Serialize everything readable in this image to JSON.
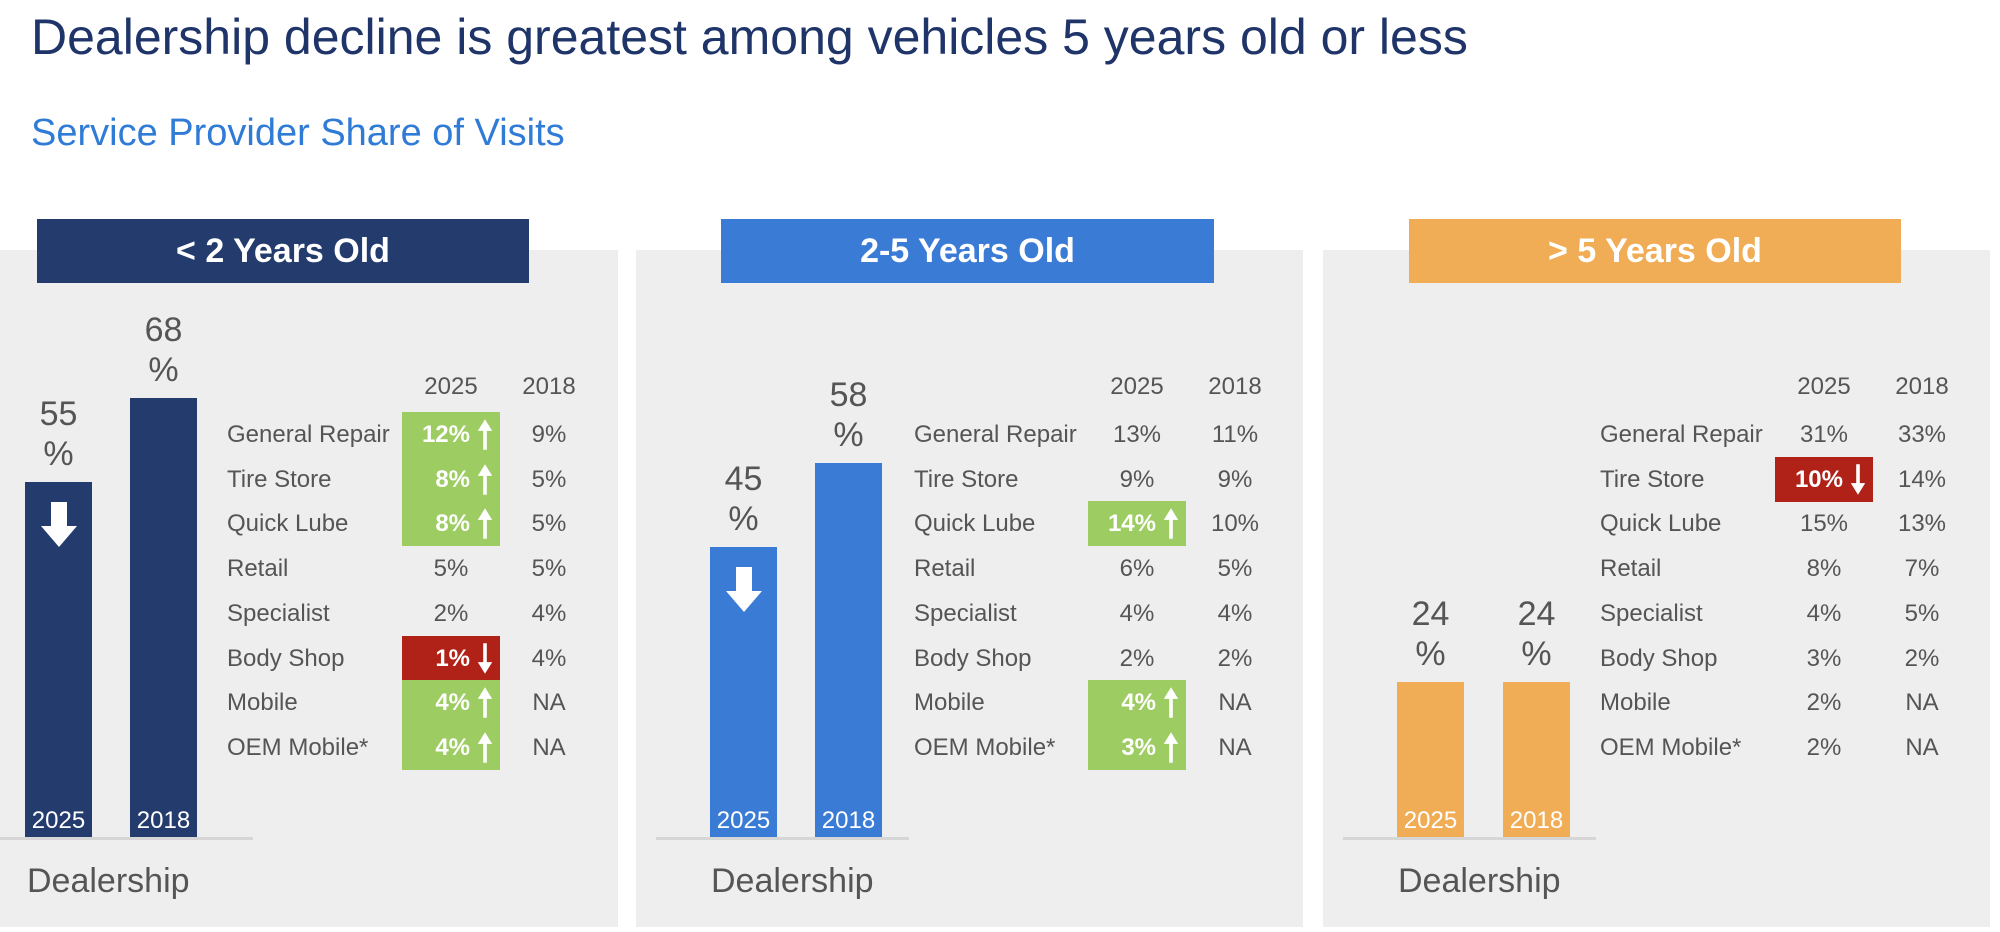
{
  "title": "Dealership decline is greatest among vehicles 5 years old or less",
  "subtitle": "Service Provider Share of Visits",
  "colors": {
    "title": "#1f3468",
    "subtitle": "#2f7bd6",
    "increase": "#9dcc63",
    "decrease": "#b02118",
    "panel_bg": "#eeeeee"
  },
  "chart_data": [
    {
      "type": "bar",
      "title": "< 2 Years Old",
      "color": "#243b6e",
      "categories": [
        "2025",
        "2018"
      ],
      "values": [
        55,
        68
      ],
      "value_labels": [
        "55\n%",
        "68\n%"
      ],
      "xlabel": "Dealership",
      "ylim": [
        0,
        100
      ],
      "annotation": {
        "bar": "2025",
        "icon": "down-arrow-icon"
      },
      "table": {
        "columns": [
          "2025",
          "2018"
        ],
        "rows": [
          {
            "label": "General Repair",
            "v2025": "12%",
            "v2018": "9%",
            "trend": "up"
          },
          {
            "label": "Tire Store",
            "v2025": "8%",
            "v2018": "5%",
            "trend": "up"
          },
          {
            "label": "Quick Lube",
            "v2025": "8%",
            "v2018": "5%",
            "trend": "up"
          },
          {
            "label": "Retail",
            "v2025": "5%",
            "v2018": "5%",
            "trend": ""
          },
          {
            "label": "Specialist",
            "v2025": "2%",
            "v2018": "4%",
            "trend": ""
          },
          {
            "label": "Body Shop",
            "v2025": "1%",
            "v2018": "4%",
            "trend": "down"
          },
          {
            "label": "Mobile",
            "v2025": "4%",
            "v2018": "NA",
            "trend": "up"
          },
          {
            "label": "OEM Mobile*",
            "v2025": "4%",
            "v2018": "NA",
            "trend": "up"
          }
        ]
      }
    },
    {
      "type": "bar",
      "title": "2-5 Years Old",
      "color": "#3a7bd5",
      "categories": [
        "2025",
        "2018"
      ],
      "values": [
        45,
        58
      ],
      "value_labels": [
        "45\n%",
        "58\n%"
      ],
      "xlabel": "Dealership",
      "ylim": [
        0,
        100
      ],
      "annotation": {
        "bar": "2025",
        "icon": "down-arrow-icon"
      },
      "table": {
        "columns": [
          "2025",
          "2018"
        ],
        "rows": [
          {
            "label": "General Repair",
            "v2025": "13%",
            "v2018": "11%",
            "trend": ""
          },
          {
            "label": "Tire Store",
            "v2025": "9%",
            "v2018": "9%",
            "trend": ""
          },
          {
            "label": "Quick Lube",
            "v2025": "14%",
            "v2018": "10%",
            "trend": "up"
          },
          {
            "label": "Retail",
            "v2025": "6%",
            "v2018": "5%",
            "trend": ""
          },
          {
            "label": "Specialist",
            "v2025": "4%",
            "v2018": "4%",
            "trend": ""
          },
          {
            "label": "Body Shop",
            "v2025": "2%",
            "v2018": "2%",
            "trend": ""
          },
          {
            "label": "Mobile",
            "v2025": "4%",
            "v2018": "NA",
            "trend": "up"
          },
          {
            "label": "OEM Mobile*",
            "v2025": "3%",
            "v2018": "NA",
            "trend": "up"
          }
        ]
      }
    },
    {
      "type": "bar",
      "title": "> 5 Years Old",
      "color": "#f0ad55",
      "categories": [
        "2025",
        "2018"
      ],
      "values": [
        24,
        24
      ],
      "value_labels": [
        "24\n%",
        "24\n%"
      ],
      "xlabel": "Dealership",
      "ylim": [
        0,
        100
      ],
      "annotation": null,
      "table": {
        "columns": [
          "2025",
          "2018"
        ],
        "rows": [
          {
            "label": "General Repair",
            "v2025": "31%",
            "v2018": "33%",
            "trend": ""
          },
          {
            "label": "Tire Store",
            "v2025": "10%",
            "v2018": "14%",
            "trend": "down"
          },
          {
            "label": "Quick Lube",
            "v2025": "15%",
            "v2018": "13%",
            "trend": ""
          },
          {
            "label": "Retail",
            "v2025": "8%",
            "v2018": "7%",
            "trend": ""
          },
          {
            "label": "Specialist",
            "v2025": "4%",
            "v2018": "5%",
            "trend": ""
          },
          {
            "label": "Body Shop",
            "v2025": "3%",
            "v2018": "2%",
            "trend": ""
          },
          {
            "label": "Mobile",
            "v2025": "2%",
            "v2018": "NA",
            "trend": ""
          },
          {
            "label": "OEM Mobile*",
            "v2025": "2%",
            "v2018": "NA",
            "trend": ""
          }
        ]
      }
    }
  ]
}
